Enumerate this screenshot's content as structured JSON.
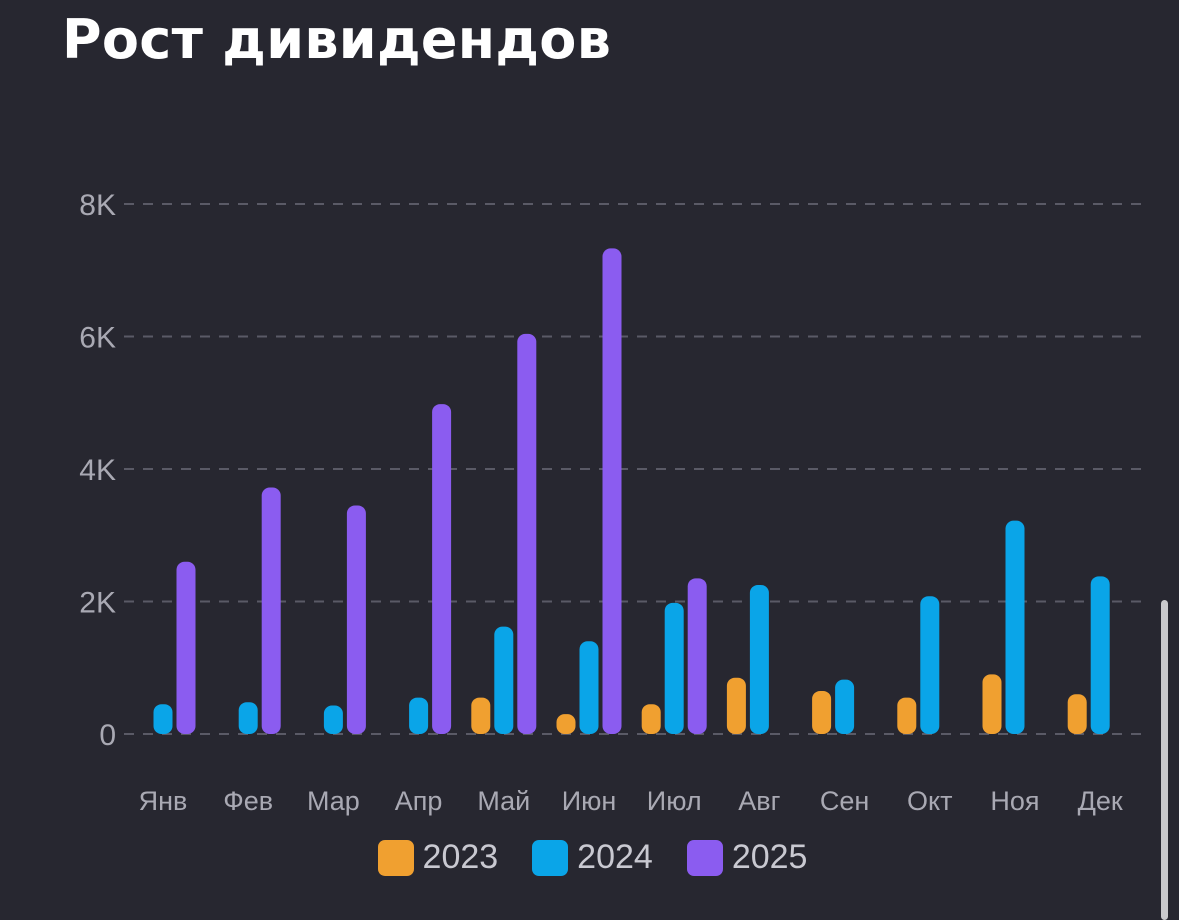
{
  "chart_data": {
    "type": "bar",
    "title": "Рост дивидендов",
    "xlabel": "",
    "ylabel": "",
    "ylim": [
      0,
      8000
    ],
    "y_ticks": [
      0,
      2000,
      4000,
      6000,
      8000
    ],
    "y_tick_labels": [
      "0",
      "2K",
      "4K",
      "6K",
      "8K"
    ],
    "grid": true,
    "legend_position": "bottom",
    "categories": [
      "Янв",
      "Фев",
      "Мар",
      "Апр",
      "Май",
      "Июн",
      "Июл",
      "Авг",
      "Сен",
      "Окт",
      "Ноя",
      "Дек"
    ],
    "series": [
      {
        "name": "2023",
        "color": "#f0a030",
        "values": [
          0,
          0,
          0,
          0,
          550,
          300,
          450,
          850,
          650,
          550,
          900,
          600
        ]
      },
      {
        "name": "2024",
        "color": "#0aa5e8",
        "values": [
          450,
          480,
          430,
          550,
          1620,
          1400,
          1980,
          2250,
          820,
          2080,
          3220,
          2380
        ]
      },
      {
        "name": "2025",
        "color": "#8b5cf0",
        "values": [
          2600,
          3720,
          3450,
          4980,
          6040,
          7330,
          2350,
          0,
          0,
          0,
          0,
          0
        ]
      }
    ]
  }
}
